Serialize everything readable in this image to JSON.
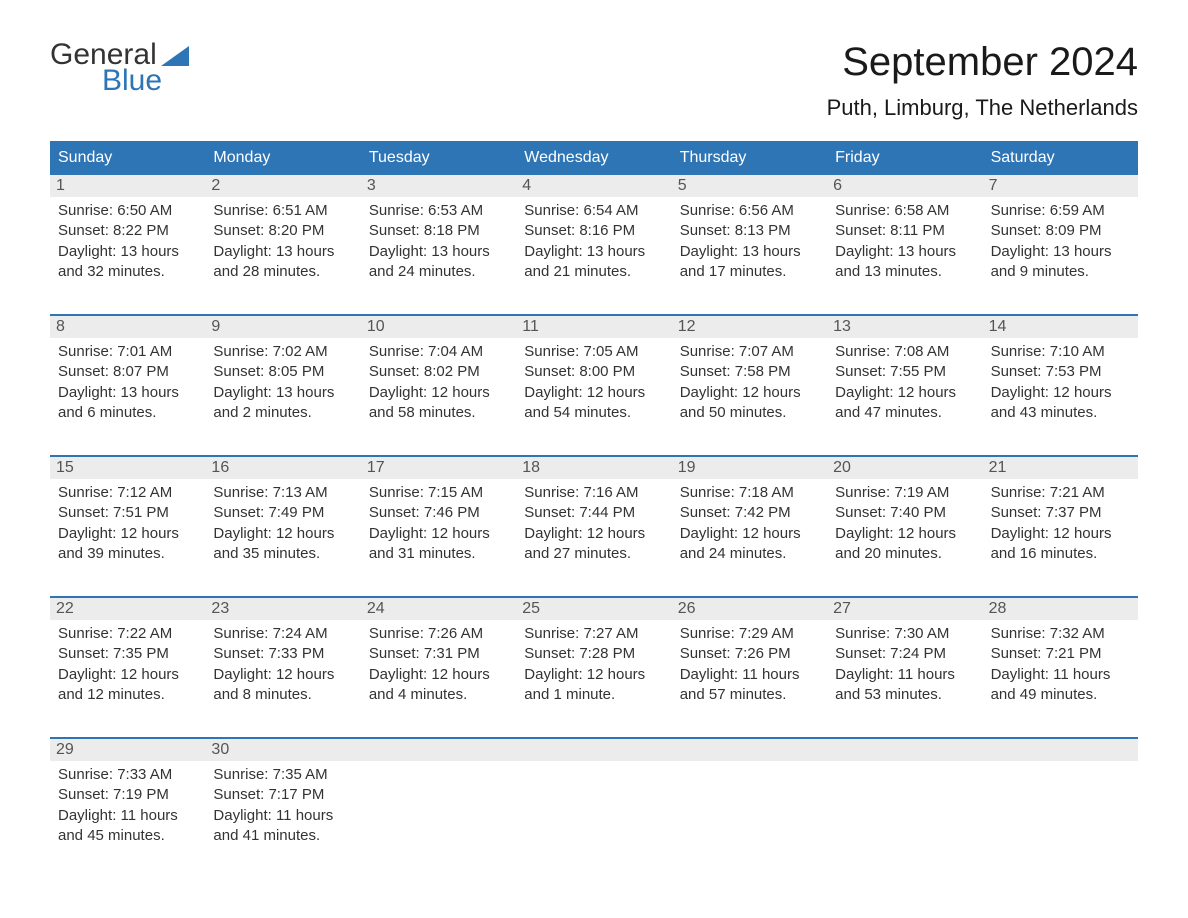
{
  "logo": {
    "general": "General",
    "blue": "Blue",
    "flag_color": "#2e75b6"
  },
  "title": "September 2024",
  "location": "Puth, Limburg, The Netherlands",
  "colors": {
    "header_bg": "#2e75b6",
    "header_text": "#ffffff",
    "daynum_bg": "#ececec",
    "text": "#333333",
    "border": "#2e75b6",
    "background": "#ffffff"
  },
  "typography": {
    "title_fontsize": 40,
    "location_fontsize": 22,
    "dow_fontsize": 16,
    "body_fontsize": 15
  },
  "days_of_week": [
    "Sunday",
    "Monday",
    "Tuesday",
    "Wednesday",
    "Thursday",
    "Friday",
    "Saturday"
  ],
  "layout": {
    "columns": 7,
    "weeks": 5,
    "start_day": 1
  },
  "weeks": [
    [
      {
        "n": "1",
        "sunrise": "Sunrise: 6:50 AM",
        "sunset": "Sunset: 8:22 PM",
        "day1": "Daylight: 13 hours",
        "day2": "and 32 minutes."
      },
      {
        "n": "2",
        "sunrise": "Sunrise: 6:51 AM",
        "sunset": "Sunset: 8:20 PM",
        "day1": "Daylight: 13 hours",
        "day2": "and 28 minutes."
      },
      {
        "n": "3",
        "sunrise": "Sunrise: 6:53 AM",
        "sunset": "Sunset: 8:18 PM",
        "day1": "Daylight: 13 hours",
        "day2": "and 24 minutes."
      },
      {
        "n": "4",
        "sunrise": "Sunrise: 6:54 AM",
        "sunset": "Sunset: 8:16 PM",
        "day1": "Daylight: 13 hours",
        "day2": "and 21 minutes."
      },
      {
        "n": "5",
        "sunrise": "Sunrise: 6:56 AM",
        "sunset": "Sunset: 8:13 PM",
        "day1": "Daylight: 13 hours",
        "day2": "and 17 minutes."
      },
      {
        "n": "6",
        "sunrise": "Sunrise: 6:58 AM",
        "sunset": "Sunset: 8:11 PM",
        "day1": "Daylight: 13 hours",
        "day2": "and 13 minutes."
      },
      {
        "n": "7",
        "sunrise": "Sunrise: 6:59 AM",
        "sunset": "Sunset: 8:09 PM",
        "day1": "Daylight: 13 hours",
        "day2": "and 9 minutes."
      }
    ],
    [
      {
        "n": "8",
        "sunrise": "Sunrise: 7:01 AM",
        "sunset": "Sunset: 8:07 PM",
        "day1": "Daylight: 13 hours",
        "day2": "and 6 minutes."
      },
      {
        "n": "9",
        "sunrise": "Sunrise: 7:02 AM",
        "sunset": "Sunset: 8:05 PM",
        "day1": "Daylight: 13 hours",
        "day2": "and 2 minutes."
      },
      {
        "n": "10",
        "sunrise": "Sunrise: 7:04 AM",
        "sunset": "Sunset: 8:02 PM",
        "day1": "Daylight: 12 hours",
        "day2": "and 58 minutes."
      },
      {
        "n": "11",
        "sunrise": "Sunrise: 7:05 AM",
        "sunset": "Sunset: 8:00 PM",
        "day1": "Daylight: 12 hours",
        "day2": "and 54 minutes."
      },
      {
        "n": "12",
        "sunrise": "Sunrise: 7:07 AM",
        "sunset": "Sunset: 7:58 PM",
        "day1": "Daylight: 12 hours",
        "day2": "and 50 minutes."
      },
      {
        "n": "13",
        "sunrise": "Sunrise: 7:08 AM",
        "sunset": "Sunset: 7:55 PM",
        "day1": "Daylight: 12 hours",
        "day2": "and 47 minutes."
      },
      {
        "n": "14",
        "sunrise": "Sunrise: 7:10 AM",
        "sunset": "Sunset: 7:53 PM",
        "day1": "Daylight: 12 hours",
        "day2": "and 43 minutes."
      }
    ],
    [
      {
        "n": "15",
        "sunrise": "Sunrise: 7:12 AM",
        "sunset": "Sunset: 7:51 PM",
        "day1": "Daylight: 12 hours",
        "day2": "and 39 minutes."
      },
      {
        "n": "16",
        "sunrise": "Sunrise: 7:13 AM",
        "sunset": "Sunset: 7:49 PM",
        "day1": "Daylight: 12 hours",
        "day2": "and 35 minutes."
      },
      {
        "n": "17",
        "sunrise": "Sunrise: 7:15 AM",
        "sunset": "Sunset: 7:46 PM",
        "day1": "Daylight: 12 hours",
        "day2": "and 31 minutes."
      },
      {
        "n": "18",
        "sunrise": "Sunrise: 7:16 AM",
        "sunset": "Sunset: 7:44 PM",
        "day1": "Daylight: 12 hours",
        "day2": "and 27 minutes."
      },
      {
        "n": "19",
        "sunrise": "Sunrise: 7:18 AM",
        "sunset": "Sunset: 7:42 PM",
        "day1": "Daylight: 12 hours",
        "day2": "and 24 minutes."
      },
      {
        "n": "20",
        "sunrise": "Sunrise: 7:19 AM",
        "sunset": "Sunset: 7:40 PM",
        "day1": "Daylight: 12 hours",
        "day2": "and 20 minutes."
      },
      {
        "n": "21",
        "sunrise": "Sunrise: 7:21 AM",
        "sunset": "Sunset: 7:37 PM",
        "day1": "Daylight: 12 hours",
        "day2": "and 16 minutes."
      }
    ],
    [
      {
        "n": "22",
        "sunrise": "Sunrise: 7:22 AM",
        "sunset": "Sunset: 7:35 PM",
        "day1": "Daylight: 12 hours",
        "day2": "and 12 minutes."
      },
      {
        "n": "23",
        "sunrise": "Sunrise: 7:24 AM",
        "sunset": "Sunset: 7:33 PM",
        "day1": "Daylight: 12 hours",
        "day2": "and 8 minutes."
      },
      {
        "n": "24",
        "sunrise": "Sunrise: 7:26 AM",
        "sunset": "Sunset: 7:31 PM",
        "day1": "Daylight: 12 hours",
        "day2": "and 4 minutes."
      },
      {
        "n": "25",
        "sunrise": "Sunrise: 7:27 AM",
        "sunset": "Sunset: 7:28 PM",
        "day1": "Daylight: 12 hours",
        "day2": "and 1 minute."
      },
      {
        "n": "26",
        "sunrise": "Sunrise: 7:29 AM",
        "sunset": "Sunset: 7:26 PM",
        "day1": "Daylight: 11 hours",
        "day2": "and 57 minutes."
      },
      {
        "n": "27",
        "sunrise": "Sunrise: 7:30 AM",
        "sunset": "Sunset: 7:24 PM",
        "day1": "Daylight: 11 hours",
        "day2": "and 53 minutes."
      },
      {
        "n": "28",
        "sunrise": "Sunrise: 7:32 AM",
        "sunset": "Sunset: 7:21 PM",
        "day1": "Daylight: 11 hours",
        "day2": "and 49 minutes."
      }
    ],
    [
      {
        "n": "29",
        "sunrise": "Sunrise: 7:33 AM",
        "sunset": "Sunset: 7:19 PM",
        "day1": "Daylight: 11 hours",
        "day2": "and 45 minutes."
      },
      {
        "n": "30",
        "sunrise": "Sunrise: 7:35 AM",
        "sunset": "Sunset: 7:17 PM",
        "day1": "Daylight: 11 hours",
        "day2": "and 41 minutes."
      },
      null,
      null,
      null,
      null,
      null
    ]
  ]
}
